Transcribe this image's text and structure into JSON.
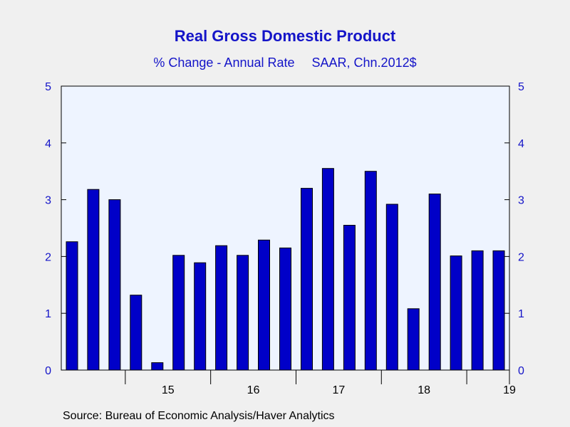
{
  "title": "Real Gross Domestic Product",
  "subtitle_left": "% Change - Annual Rate",
  "subtitle_right": "SAAR, Chn.2012$",
  "source": "Source:  Bureau of Economic Analysis/Haver Analytics",
  "colors": {
    "bar": "#0000c8",
    "title": "#1414c8",
    "axis_text": "#1414c8",
    "plot_bg": "#eef4ff",
    "page_bg": "#f0f0f0"
  },
  "chart_data": {
    "type": "bar",
    "categories": [
      "14Q2",
      "14Q3",
      "14Q4",
      "15Q1",
      "15Q2",
      "15Q3",
      "15Q4",
      "16Q1",
      "16Q2",
      "16Q3",
      "16Q4",
      "17Q1",
      "17Q2",
      "17Q3",
      "17Q4",
      "18Q1",
      "18Q2",
      "18Q3",
      "18Q4",
      "19Q1",
      "19Q2"
    ],
    "values": [
      2.26,
      3.18,
      3.0,
      1.32,
      0.13,
      2.02,
      1.89,
      2.19,
      2.02,
      2.29,
      2.15,
      3.2,
      3.55,
      2.55,
      3.5,
      2.92,
      1.08,
      3.1,
      2.01,
      2.1,
      2.1
    ],
    "ylim": [
      0,
      5
    ],
    "yticks": [
      "0",
      "1",
      "2",
      "3",
      "4",
      "5"
    ],
    "xtick_labels": [
      "15",
      "16",
      "17",
      "18",
      "19"
    ],
    "title": "Real Gross Domestic Product",
    "xlabel": "",
    "ylabel": "",
    "grid": false,
    "dual_y_axis": true
  }
}
